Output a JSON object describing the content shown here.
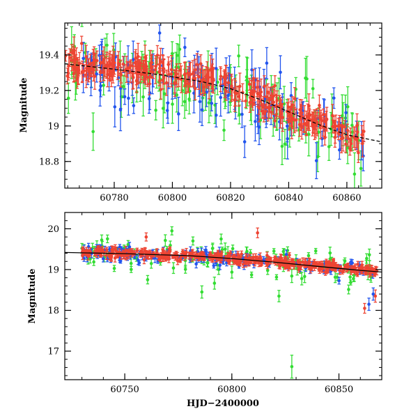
{
  "chart_data": [
    {
      "type": "scatter",
      "title": "",
      "xlabel": "",
      "ylabel": "Magnitude",
      "xlim": [
        60763,
        60872
      ],
      "ylim": [
        19.58,
        18.65
      ],
      "y_inverted": true,
      "xticks_major": [
        60780,
        60800,
        60820,
        60840,
        60860
      ],
      "xticks_minor_step": 4,
      "yticks_major": [
        18.8,
        19,
        19.2,
        19.4
      ],
      "ytick_labels": [
        "18.8",
        "19",
        "19.2",
        "19.4"
      ],
      "yticks_minor_step": 0.05,
      "grid": false,
      "legend": "none",
      "fit_curve": {
        "color": "#000000",
        "style": "dashed",
        "x": [
          60763,
          60780,
          60795,
          60810,
          60820,
          60830,
          60840,
          60850,
          60860,
          60872
        ],
        "y": [
          19.35,
          19.32,
          19.29,
          19.25,
          19.21,
          19.15,
          19.08,
          19.01,
          18.95,
          18.91
        ]
      },
      "series": [
        {
          "color": "#33dd33",
          "x_range": [
            60763,
            60866
          ],
          "trend": [
            [
              60763,
              19.33
            ],
            [
              60800,
              19.28
            ],
            [
              60830,
              19.15
            ],
            [
              60866,
              18.88
            ]
          ],
          "scatter_sd": 0.11,
          "err_range": [
            0.05,
            0.14
          ],
          "count": 120,
          "seed": 11
        },
        {
          "color": "#2255ee",
          "x_range": [
            60768,
            60866
          ],
          "trend": [
            [
              60768,
              19.32
            ],
            [
              60800,
              19.27
            ],
            [
              60830,
              19.14
            ],
            [
              60866,
              18.9
            ]
          ],
          "scatter_sd": 0.1,
          "err_range": [
            0.04,
            0.12
          ],
          "count": 110,
          "seed": 23
        },
        {
          "color": "#ee4433",
          "x_range": [
            60763,
            60866
          ],
          "trend": [
            [
              60763,
              19.35
            ],
            [
              60790,
              19.32
            ],
            [
              60810,
              19.27
            ],
            [
              60830,
              19.15
            ],
            [
              60850,
              19.02
            ],
            [
              60866,
              18.9
            ]
          ],
          "scatter_sd": 0.04,
          "err_range": [
            0.03,
            0.08
          ],
          "count": 320,
          "seed": 37
        }
      ]
    },
    {
      "type": "scatter",
      "title": "",
      "xlabel": "HJD−2400000",
      "ylabel": "Magnitude",
      "xlim": [
        60722,
        60870
      ],
      "ylim": [
        20.4,
        16.3
      ],
      "y_inverted": true,
      "xticks_major": [
        60750,
        60800,
        60850
      ],
      "xticks_minor_step": 10,
      "yticks_major": [
        17,
        18,
        19,
        20
      ],
      "ytick_labels": [
        "17",
        "18",
        "19",
        "20"
      ],
      "yticks_minor_step": 0.2,
      "grid": false,
      "legend": "none",
      "fit_curve": {
        "color": "#000000",
        "style": "solid",
        "x": [
          60722,
          60750,
          60780,
          60800,
          60820,
          60840,
          60860,
          60870
        ],
        "y": [
          19.42,
          19.39,
          19.34,
          19.27,
          19.18,
          19.08,
          18.98,
          18.94
        ]
      },
      "series": [
        {
          "color": "#33dd33",
          "x_range": [
            60730,
            60865
          ],
          "trend": [
            [
              60730,
              19.45
            ],
            [
              60780,
              19.35
            ],
            [
              60820,
              19.2
            ],
            [
              60865,
              18.95
            ]
          ],
          "scatter_sd": 0.2,
          "err_range": [
            0.06,
            0.16
          ],
          "count": 110,
          "seed": 51,
          "extra_points": [
            {
              "x": 60828,
              "y": 16.62,
              "err": 0.28
            },
            {
              "x": 60786,
              "y": 18.45,
              "err": 0.15
            },
            {
              "x": 60822,
              "y": 18.35,
              "err": 0.14
            },
            {
              "x": 60730,
              "y": 19.52,
              "err": 0.12
            },
            {
              "x": 60772,
              "y": 19.95,
              "err": 0.1
            },
            {
              "x": 60795,
              "y": 19.75,
              "err": 0.12
            }
          ]
        },
        {
          "color": "#2255ee",
          "x_range": [
            60730,
            60866
          ],
          "trend": [
            [
              60730,
              19.42
            ],
            [
              60780,
              19.33
            ],
            [
              60820,
              19.2
            ],
            [
              60866,
              18.95
            ]
          ],
          "scatter_sd": 0.1,
          "err_range": [
            0.05,
            0.12
          ],
          "count": 130,
          "seed": 63,
          "extra_points": [
            {
              "x": 60864,
              "y": 18.15,
              "err": 0.15
            },
            {
              "x": 60866,
              "y": 18.4,
              "err": 0.15
            }
          ]
        },
        {
          "color": "#ee4433",
          "x_range": [
            60730,
            60868
          ],
          "trend": [
            [
              60730,
              19.42
            ],
            [
              60760,
              19.38
            ],
            [
              60790,
              19.3
            ],
            [
              60820,
              19.2
            ],
            [
              60850,
              19.05
            ],
            [
              60868,
              18.95
            ]
          ],
          "scatter_sd": 0.06,
          "err_range": [
            0.04,
            0.1
          ],
          "count": 380,
          "seed": 77,
          "extra_points": [
            {
              "x": 60862,
              "y": 18.05,
              "err": 0.12
            },
            {
              "x": 60867,
              "y": 18.35,
              "err": 0.15
            },
            {
              "x": 60812,
              "y": 19.9,
              "err": 0.12
            },
            {
              "x": 60760,
              "y": 19.8,
              "err": 0.1
            }
          ]
        }
      ]
    }
  ]
}
